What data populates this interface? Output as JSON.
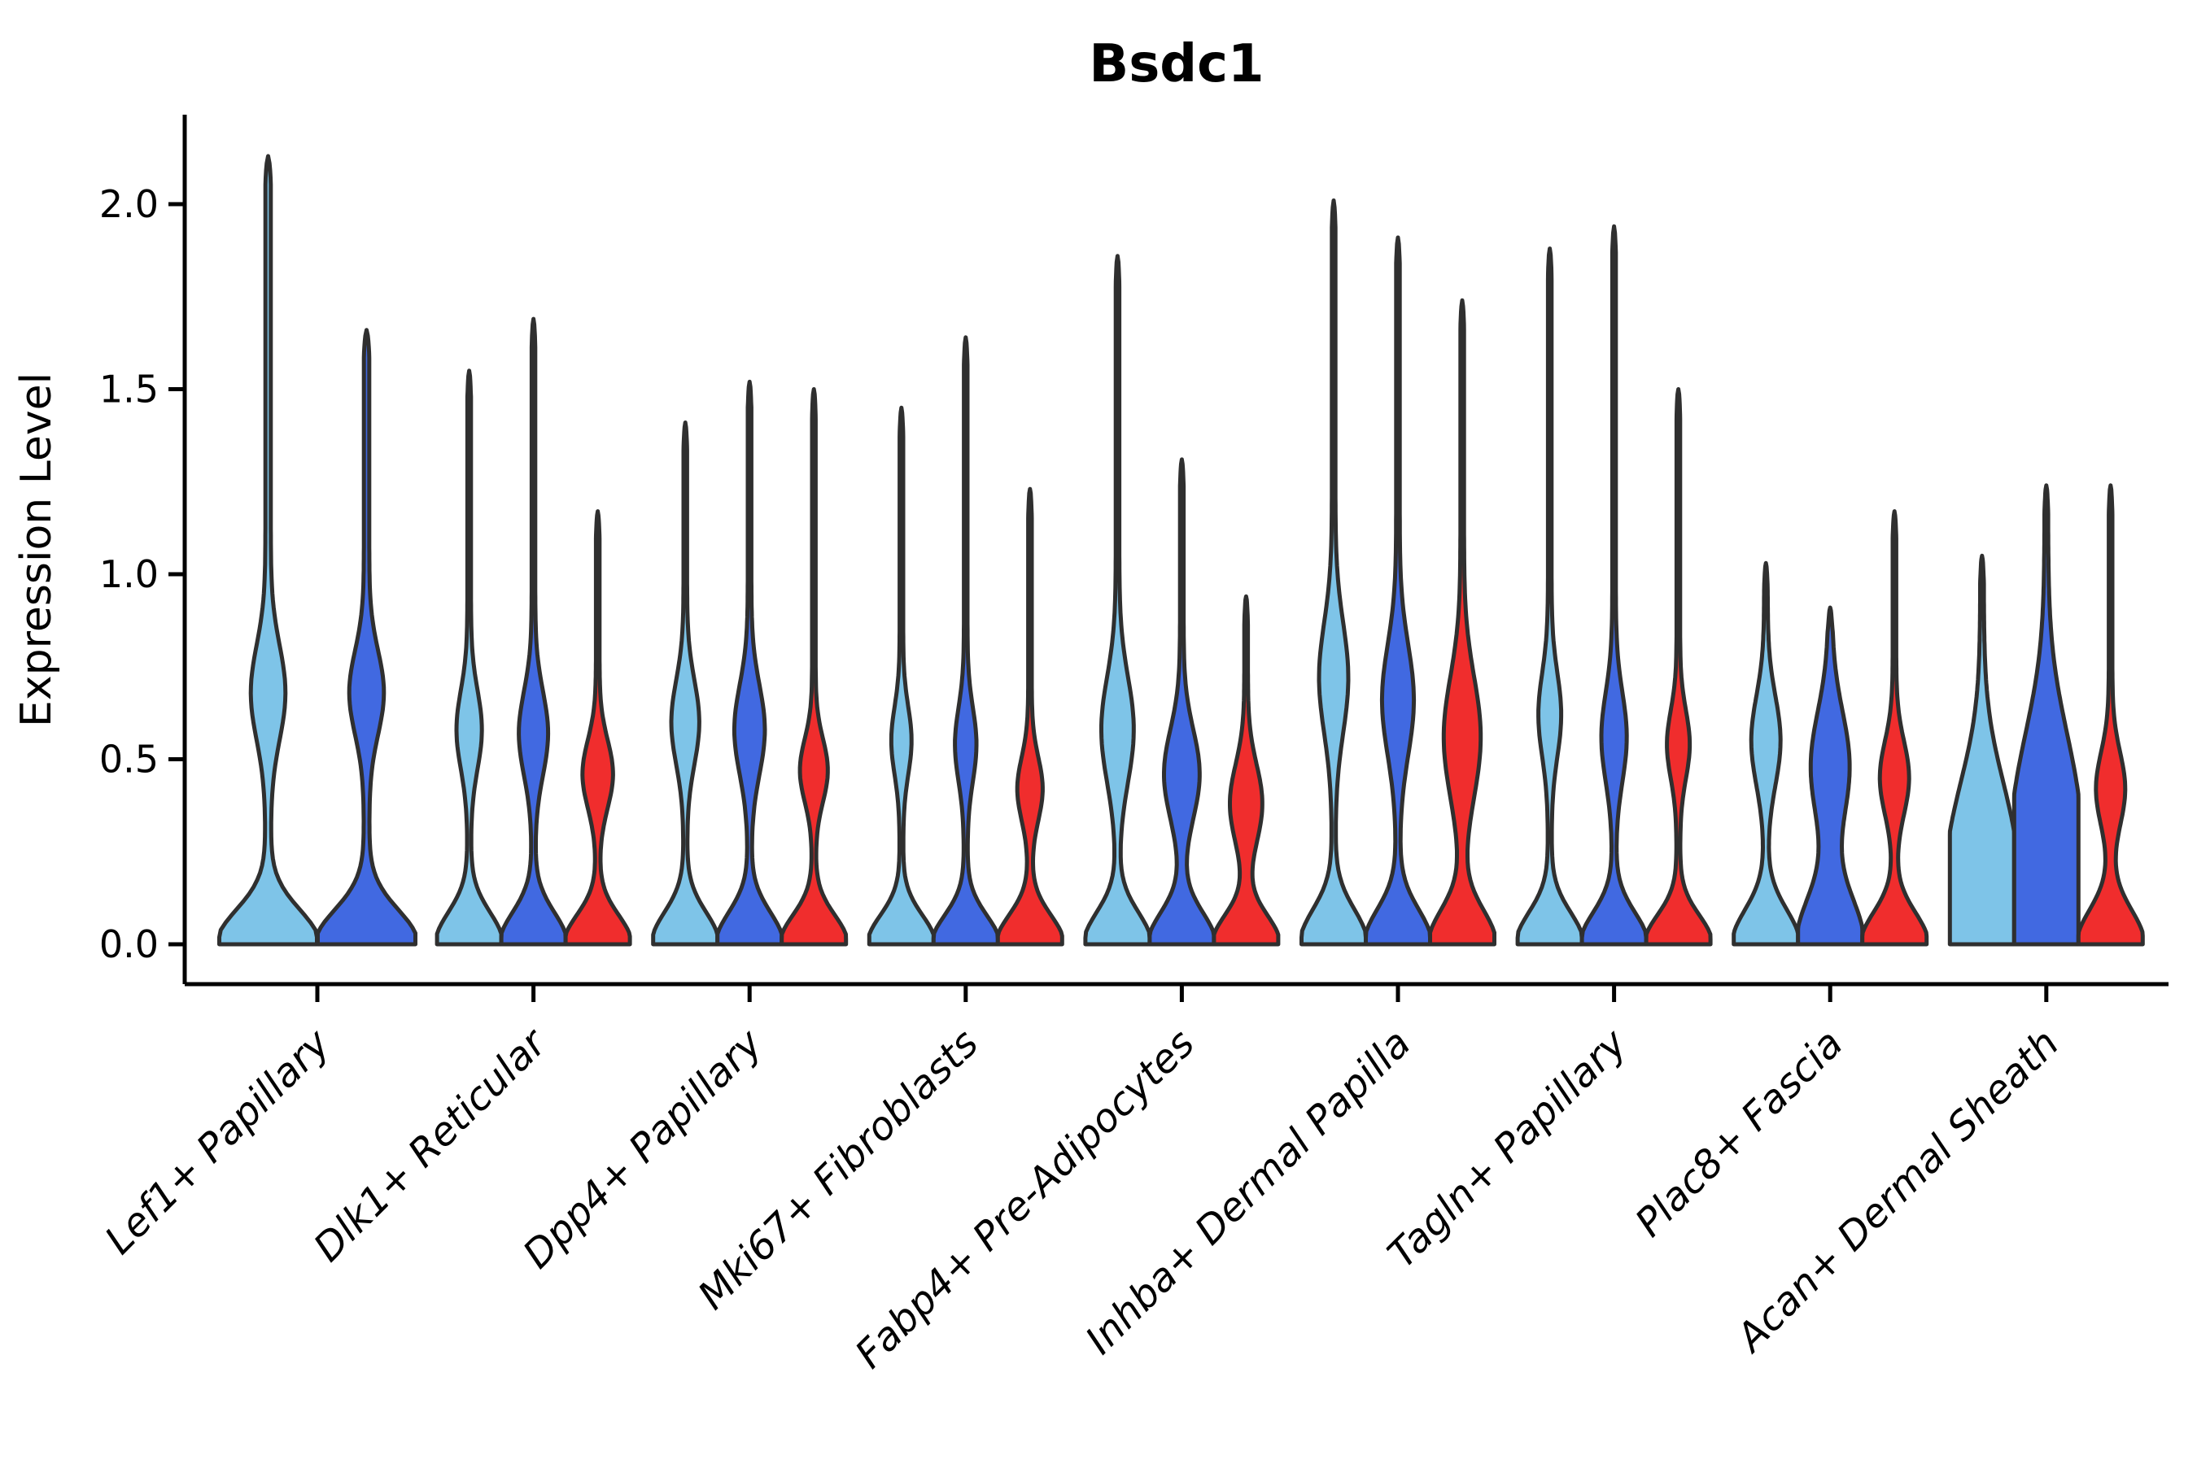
{
  "chart_data": {
    "type": "violin",
    "title": "Bsdc1",
    "xlabel": "",
    "ylabel": "Expression Level",
    "grid": false,
    "legend": "none",
    "background": "#ffffff",
    "text_color": "#000000",
    "edge_color": "#2f2f2f",
    "spine_color": "#000000",
    "ylim": [
      -0.11,
      2.24
    ],
    "yticks": [
      0.0,
      0.5,
      1.0,
      1.5,
      2.0
    ],
    "ytick_labels": [
      "0.0",
      "0.5",
      "1.0",
      "1.5",
      "2.0"
    ],
    "categories": [
      "Lef1+ Papillary",
      "Dlk1+ Reticular",
      "Dpp4+ Papillary",
      "Mki67+ Fibroblasts",
      "Fabp4+ Pre-Adipocytes",
      "Inhba+ Dermal Papilla",
      "Tagln+ Papillary",
      "Plac8+ Fascia",
      "Acan+ Dermal Sheath"
    ],
    "split_colors": [
      "#7EC4E8",
      "#4169E1",
      "#F02D2D"
    ],
    "groups": [
      {
        "category": "Lef1+ Papillary",
        "violins": [
          {
            "split": 0,
            "max": 2.13,
            "bulge_center": 0.68,
            "bulge_sigma": 0.18,
            "bulge_amp": 0.3,
            "base_scale": 0.13
          },
          {
            "split": 1,
            "max": 1.66,
            "bulge_center": 0.68,
            "bulge_sigma": 0.16,
            "bulge_amp": 0.3,
            "base_scale": 0.13
          }
        ]
      },
      {
        "category": "Dlk1+ Reticular",
        "violins": [
          {
            "split": 0,
            "max": 1.55,
            "bulge_center": 0.58,
            "bulge_sigma": 0.15,
            "bulge_amp": 0.34,
            "base_scale": 0.12
          },
          {
            "split": 1,
            "max": 1.69,
            "bulge_center": 0.57,
            "bulge_sigma": 0.16,
            "bulge_amp": 0.4,
            "base_scale": 0.12
          },
          {
            "split": 2,
            "max": 1.17,
            "bulge_center": 0.46,
            "bulge_sigma": 0.13,
            "bulge_amp": 0.42,
            "base_scale": 0.11
          }
        ]
      },
      {
        "category": "Dpp4+ Papillary",
        "violins": [
          {
            "split": 0,
            "max": 1.41,
            "bulge_center": 0.6,
            "bulge_sigma": 0.16,
            "bulge_amp": 0.38,
            "base_scale": 0.12
          },
          {
            "split": 1,
            "max": 1.52,
            "bulge_center": 0.58,
            "bulge_sigma": 0.17,
            "bulge_amp": 0.42,
            "base_scale": 0.12
          },
          {
            "split": 2,
            "max": 1.5,
            "bulge_center": 0.47,
            "bulge_sigma": 0.12,
            "bulge_amp": 0.38,
            "base_scale": 0.11
          }
        ]
      },
      {
        "category": "Mki67+ Fibroblasts",
        "violins": [
          {
            "split": 0,
            "max": 1.45,
            "bulge_center": 0.55,
            "bulge_sigma": 0.13,
            "bulge_amp": 0.26,
            "base_scale": 0.11
          },
          {
            "split": 1,
            "max": 1.64,
            "bulge_center": 0.54,
            "bulge_sigma": 0.14,
            "bulge_amp": 0.28,
            "base_scale": 0.11
          },
          {
            "split": 2,
            "max": 1.23,
            "bulge_center": 0.42,
            "bulge_sigma": 0.12,
            "bulge_amp": 0.34,
            "base_scale": 0.11
          }
        ]
      },
      {
        "category": "Fabp4+ Pre-Adipocytes",
        "violins": [
          {
            "split": 0,
            "max": 1.86,
            "bulge_center": 0.58,
            "bulge_sigma": 0.2,
            "bulge_amp": 0.45,
            "base_scale": 0.12
          },
          {
            "split": 1,
            "max": 1.31,
            "bulge_center": 0.46,
            "bulge_sigma": 0.17,
            "bulge_amp": 0.5,
            "base_scale": 0.12
          },
          {
            "split": 2,
            "max": 0.94,
            "bulge_center": 0.38,
            "bulge_sigma": 0.15,
            "bulge_amp": 0.45,
            "base_scale": 0.11
          }
        ]
      },
      {
        "category": "Inhba+ Dermal Papilla",
        "violins": [
          {
            "split": 0,
            "max": 2.01,
            "bulge_center": 0.72,
            "bulge_sigma": 0.21,
            "bulge_amp": 0.4,
            "base_scale": 0.13
          },
          {
            "split": 1,
            "max": 1.91,
            "bulge_center": 0.66,
            "bulge_sigma": 0.21,
            "bulge_amp": 0.44,
            "base_scale": 0.13
          },
          {
            "split": 2,
            "max": 1.74,
            "bulge_center": 0.56,
            "bulge_sigma": 0.23,
            "bulge_amp": 0.52,
            "base_scale": 0.13
          }
        ]
      },
      {
        "category": "Tagln+ Papillary",
        "violins": [
          {
            "split": 0,
            "max": 1.88,
            "bulge_center": 0.62,
            "bulge_sigma": 0.16,
            "bulge_amp": 0.3,
            "base_scale": 0.12
          },
          {
            "split": 1,
            "max": 1.94,
            "bulge_center": 0.56,
            "bulge_sigma": 0.17,
            "bulge_amp": 0.34,
            "base_scale": 0.12
          },
          {
            "split": 2,
            "max": 1.5,
            "bulge_center": 0.54,
            "bulge_sigma": 0.13,
            "bulge_amp": 0.3,
            "base_scale": 0.11
          }
        ]
      },
      {
        "category": "Plac8+ Fascia",
        "violins": [
          {
            "split": 0,
            "max": 1.03,
            "bulge_center": 0.55,
            "bulge_sigma": 0.17,
            "bulge_amp": 0.4,
            "base_scale": 0.13
          },
          {
            "split": 1,
            "max": 0.91,
            "bulge_center": 0.48,
            "bulge_sigma": 0.21,
            "bulge_amp": 0.55,
            "base_scale": 0.18
          },
          {
            "split": 2,
            "max": 1.17,
            "bulge_center": 0.45,
            "bulge_sigma": 0.14,
            "bulge_amp": 0.4,
            "base_scale": 0.12
          }
        ]
      },
      {
        "category": "Acan+ Dermal Sheath",
        "violins": [
          {
            "split": 0,
            "max": 1.05,
            "bulge_center": 0.32,
            "bulge_sigma": 0.26,
            "bulge_amp": 0.42,
            "base_scale": 0.38
          },
          {
            "split": 1,
            "max": 1.24,
            "bulge_center": 0.42,
            "bulge_sigma": 0.3,
            "bulge_amp": 0.5,
            "base_scale": 0.45
          },
          {
            "split": 2,
            "max": 1.24,
            "bulge_center": 0.42,
            "bulge_sigma": 0.14,
            "bulge_amp": 0.4,
            "base_scale": 0.13
          }
        ]
      }
    ]
  }
}
